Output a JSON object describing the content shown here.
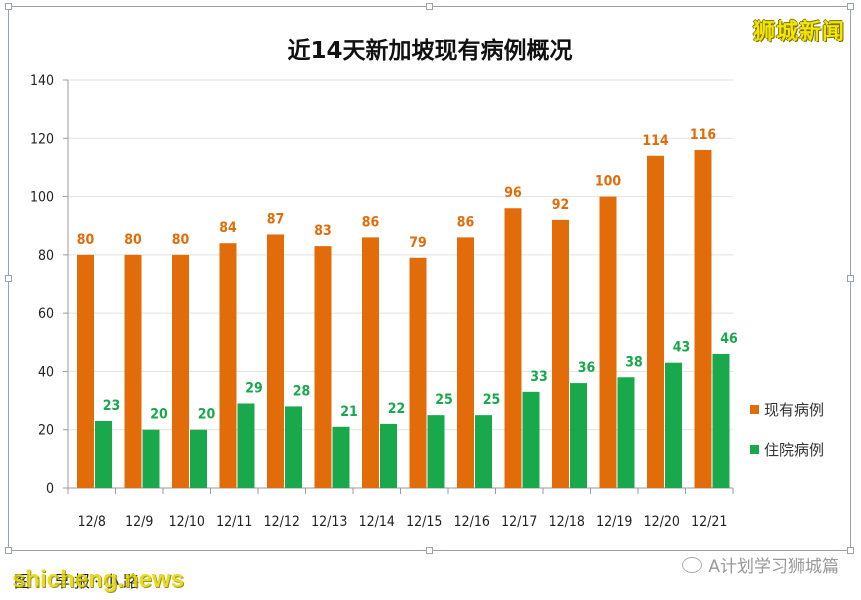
{
  "brand_logo": "狮城新闻",
  "credit": "图：早报·小路",
  "watermark": "shicheng.news",
  "wechat_account": "A计划学习狮城篇",
  "chart_data": {
    "type": "bar",
    "title": "近14天新加坡现有病例概况",
    "categories": [
      "12/8",
      "12/9",
      "12/10",
      "12/11",
      "12/12",
      "12/13",
      "12/14",
      "12/15",
      "12/16",
      "12/17",
      "12/18",
      "12/19",
      "12/20",
      "12/21"
    ],
    "series": [
      {
        "name": "现有病例",
        "color": "#e36c0a",
        "values": [
          80,
          80,
          80,
          84,
          87,
          83,
          86,
          79,
          86,
          96,
          92,
          100,
          114,
          116
        ]
      },
      {
        "name": "住院病例",
        "color": "#1aa84c",
        "values": [
          23,
          20,
          20,
          29,
          28,
          21,
          22,
          25,
          25,
          33,
          36,
          38,
          43,
          46
        ]
      }
    ],
    "ylim": [
      0,
      140
    ],
    "yticks": [
      0,
      20,
      40,
      60,
      80,
      100,
      120,
      140
    ],
    "grid": true,
    "legend_position": "right"
  }
}
